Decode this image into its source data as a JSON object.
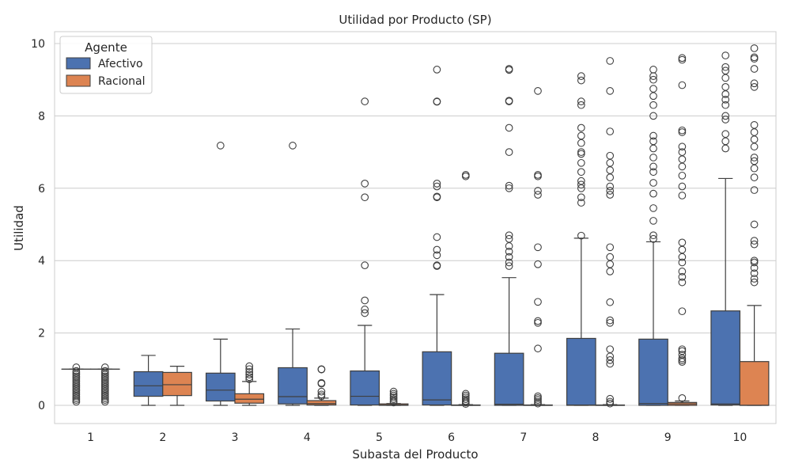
{
  "chart_data": {
    "type": "box",
    "title": "Utilidad por Producto (SP)",
    "xlabel": "Subasta del Producto",
    "ylabel": "Utilidad",
    "categories": [
      "1",
      "2",
      "3",
      "4",
      "5",
      "6",
      "7",
      "8",
      "9",
      "10"
    ],
    "ylim": [
      -0.5,
      10.3
    ],
    "yticks": [
      0,
      2,
      4,
      6,
      8,
      10
    ],
    "grid": true,
    "legend": {
      "title": "Agente",
      "placement": "top-left"
    },
    "series": [
      {
        "name": "Afectivo",
        "color": "#4c72b0",
        "boxes": [
          {
            "whislo": 1.0,
            "q1": 1.0,
            "med": 1.0,
            "q3": 1.0,
            "whishi": 1.0,
            "fliers": [
              0.1,
              0.15,
              0.2,
              0.25,
              0.3,
              0.35,
              0.4,
              0.45,
              0.5,
              0.55,
              0.6,
              0.65,
              0.7,
              0.75,
              0.8,
              0.85,
              0.9,
              0.95,
              1.05
            ]
          },
          {
            "whislo": 0.0,
            "q1": 0.25,
            "med": 0.54,
            "q3": 0.93,
            "whishi": 1.38,
            "fliers": []
          },
          {
            "whislo": 0.0,
            "q1": 0.12,
            "med": 0.42,
            "q3": 0.89,
            "whishi": 1.83,
            "fliers": [
              7.18
            ]
          },
          {
            "whislo": 0.0,
            "q1": 0.04,
            "med": 0.24,
            "q3": 1.04,
            "whishi": 2.11,
            "fliers": [
              7.18
            ]
          },
          {
            "whislo": 0.0,
            "q1": 0.01,
            "med": 0.25,
            "q3": 0.95,
            "whishi": 2.21,
            "fliers": [
              2.55,
              2.65,
              2.9,
              3.87,
              5.75,
              6.13,
              8.4
            ]
          },
          {
            "whislo": 0.0,
            "q1": 0.01,
            "med": 0.15,
            "q3": 1.48,
            "whishi": 3.06,
            "fliers": [
              3.85,
              3.87,
              4.15,
              4.3,
              4.65,
              5.75,
              5.77,
              6.05,
              6.13,
              8.39,
              8.4,
              9.28
            ]
          },
          {
            "whislo": 0.0,
            "q1": 0.0,
            "med": 0.03,
            "q3": 1.44,
            "whishi": 3.53,
            "fliers": [
              3.85,
              3.95,
              4.1,
              4.25,
              4.4,
              4.6,
              4.7,
              6.0,
              6.07,
              7.0,
              7.67,
              8.4,
              8.42,
              9.27,
              9.3
            ]
          },
          {
            "whislo": 0.0,
            "q1": 0.0,
            "med": 0.01,
            "q3": 1.85,
            "whishi": 4.62,
            "fliers": [
              4.69,
              5.6,
              5.75,
              6.0,
              6.1,
              6.2,
              6.45,
              6.7,
              6.95,
              7.0,
              7.25,
              7.45,
              7.67,
              8.3,
              8.4,
              8.98,
              9.1
            ]
          },
          {
            "whislo": 0.0,
            "q1": 0.0,
            "med": 0.05,
            "q3": 1.83,
            "whishi": 4.52,
            "fliers": [
              4.6,
              4.7,
              5.1,
              5.45,
              5.85,
              6.15,
              6.45,
              6.6,
              6.85,
              7.1,
              7.3,
              7.45,
              8.0,
              8.3,
              8.55,
              8.75,
              9.0,
              9.1,
              9.28
            ]
          },
          {
            "whislo": 0.0,
            "q1": 0.01,
            "med": 0.04,
            "q3": 2.61,
            "whishi": 6.27,
            "fliers": [
              7.1,
              7.3,
              7.5,
              7.9,
              8.0,
              8.3,
              8.45,
              8.6,
              8.8,
              9.05,
              9.25,
              9.35,
              9.67
            ]
          }
        ]
      },
      {
        "name": "Racional",
        "color": "#dd8452",
        "boxes": [
          {
            "whislo": 1.0,
            "q1": 1.0,
            "med": 1.0,
            "q3": 1.0,
            "whishi": 1.0,
            "fliers": [
              0.1,
              0.15,
              0.2,
              0.25,
              0.3,
              0.35,
              0.4,
              0.45,
              0.5,
              0.55,
              0.6,
              0.65,
              0.7,
              0.75,
              0.8,
              0.85,
              0.9,
              0.95,
              1.05
            ]
          },
          {
            "whislo": 0.0,
            "q1": 0.27,
            "med": 0.57,
            "q3": 0.91,
            "whishi": 1.08,
            "fliers": []
          },
          {
            "whislo": 0.0,
            "q1": 0.06,
            "med": 0.17,
            "q3": 0.32,
            "whishi": 0.66,
            "fliers": [
              0.72,
              0.78,
              0.85,
              0.92,
              1.0,
              1.08
            ]
          },
          {
            "whislo": 0.0,
            "q1": 0.01,
            "med": 0.05,
            "q3": 0.13,
            "whishi": 0.2,
            "fliers": [
              0.25,
              0.3,
              0.38,
              0.6,
              0.62,
              0.99,
              1.0
            ]
          },
          {
            "whislo": 0.0,
            "q1": 0.0,
            "med": 0.01,
            "q3": 0.04,
            "whishi": 0.05,
            "fliers": [
              0.08,
              0.12,
              0.17,
              0.22,
              0.27,
              0.32,
              0.38
            ]
          },
          {
            "whislo": 0.0,
            "q1": 0.0,
            "med": 0.0,
            "q3": 0.01,
            "whishi": 0.02,
            "fliers": [
              0.04,
              0.08,
              0.12,
              0.17,
              0.22,
              0.27,
              0.32,
              6.33,
              6.37
            ]
          },
          {
            "whislo": 0.0,
            "q1": 0.0,
            "med": 0.0,
            "q3": 0.01,
            "whishi": 0.02,
            "fliers": [
              0.05,
              0.1,
              0.15,
              0.2,
              0.25,
              1.57,
              2.28,
              2.33,
              2.86,
              3.9,
              4.37,
              5.82,
              5.93,
              6.33,
              6.37,
              8.69
            ]
          },
          {
            "whislo": 0.0,
            "q1": 0.0,
            "med": 0.0,
            "q3": 0.01,
            "whishi": 0.02,
            "fliers": [
              0.05,
              0.1,
              0.18,
              1.15,
              1.25,
              1.35,
              1.55,
              2.28,
              2.35,
              2.85,
              3.7,
              3.9,
              4.1,
              4.37,
              5.82,
              5.93,
              6.05,
              6.3,
              6.5,
              6.7,
              6.9,
              7.57,
              8.69,
              9.52
            ]
          },
          {
            "whislo": 0.0,
            "q1": 0.0,
            "med": 0.04,
            "q3": 0.08,
            "whishi": 0.12,
            "fliers": [
              0.2,
              1.2,
              1.25,
              1.3,
              1.4,
              1.5,
              1.55,
              2.6,
              3.4,
              3.55,
              3.7,
              3.95,
              4.1,
              4.3,
              4.5,
              5.8,
              6.05,
              6.35,
              6.6,
              6.8,
              7.0,
              7.15,
              7.55,
              7.6,
              8.85,
              9.55,
              9.6
            ]
          },
          {
            "whislo": 0.0,
            "q1": 0.0,
            "med": 0.0,
            "q3": 1.21,
            "whishi": 2.76,
            "fliers": [
              3.4,
              3.5,
              3.65,
              3.8,
              3.95,
              4.0,
              4.45,
              4.55,
              5.0,
              5.95,
              6.3,
              6.55,
              6.75,
              6.85,
              7.15,
              7.35,
              7.55,
              7.75,
              8.8,
              8.9,
              9.3,
              9.58,
              9.62,
              9.87
            ]
          }
        ]
      }
    ]
  }
}
